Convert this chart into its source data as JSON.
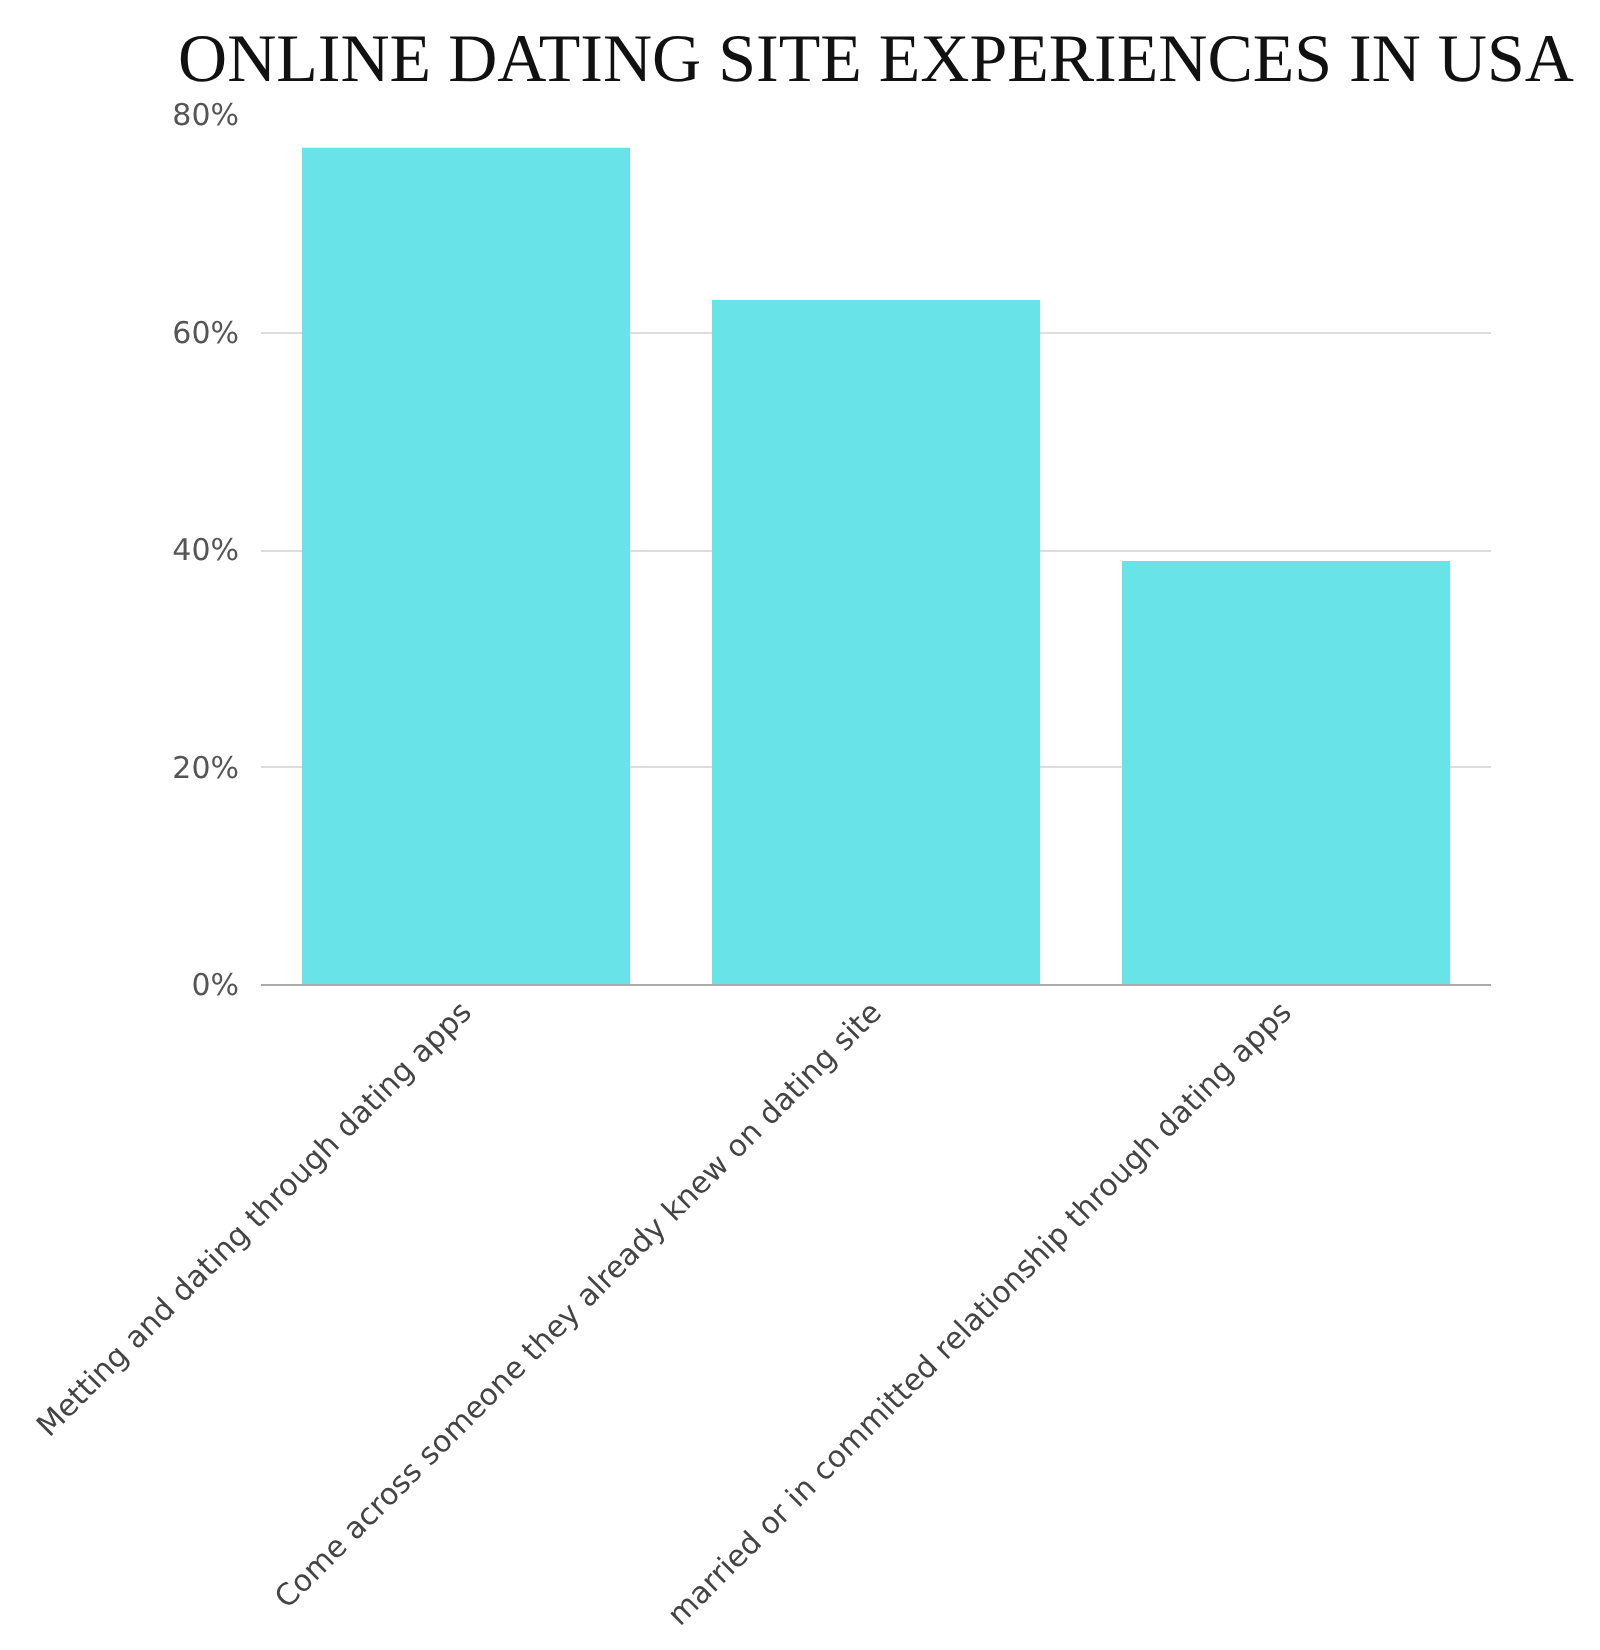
{
  "chart_data": {
    "type": "bar",
    "title": "ONLINE DATING SITE EXPERIENCES IN USA",
    "categories": [
      "Metting and dating through dating apps",
      "Come across someone they already knew on dating site",
      "married or in committed relationship through dating apps"
    ],
    "values": [
      77,
      63,
      39
    ],
    "color": "#68e3e7",
    "ylim": [
      0,
      80
    ],
    "yticks": [
      {
        "value": 0,
        "label": "0%"
      },
      {
        "value": 20,
        "label": "20%"
      },
      {
        "value": 40,
        "label": "40%"
      },
      {
        "value": 60,
        "label": "60%"
      },
      {
        "value": 80,
        "label": "80%"
      }
    ],
    "grid": "y"
  }
}
